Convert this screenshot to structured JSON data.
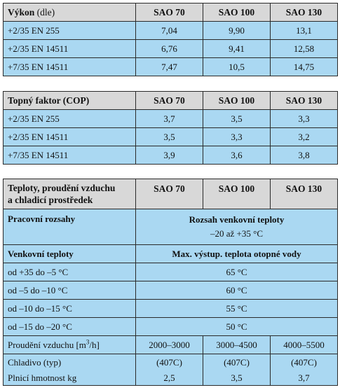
{
  "table1": {
    "header": [
      "Výkon",
      "(dle)",
      "SAO 70",
      "SAO 100",
      "SAO 130"
    ],
    "rows": [
      [
        "+2/35 EN 255",
        "7,04",
        "9,90",
        "13,1"
      ],
      [
        "+2/35 EN 14511",
        "6,76",
        "9,41",
        "12,58"
      ],
      [
        "+7/35 EN 14511",
        "7,47",
        "10,5",
        "14,75"
      ]
    ]
  },
  "table2": {
    "header": [
      "Topný faktor (COP)",
      "SAO 70",
      "SAO 100",
      "SAO 130"
    ],
    "rows": [
      [
        "+2/35 EN 255",
        "3,7",
        "3,5",
        "3,3"
      ],
      [
        "+2/35 EN 14511",
        "3,5",
        "3,3",
        "3,2"
      ],
      [
        "+7/35 EN 14511",
        "3,9",
        "3,6",
        "3,8"
      ]
    ]
  },
  "table3": {
    "header": [
      "Teploty, proudění vzduchu",
      "a chladicí prostředek",
      "SAO 70",
      "SAO 100",
      "SAO 130"
    ],
    "pracovni_label": "Pracovní rozsahy",
    "rozsah_title": "Rozsah venkovní teploty",
    "rozsah_value": "–20 až +35 °C",
    "venkovni_label": "Venkovní teploty",
    "max_title": "Max. výstup. teplota otopné vody",
    "temps": [
      [
        "od +35 do –5 °C",
        "65 °C"
      ],
      [
        "od –5 do –10 °C",
        "60 °C"
      ],
      [
        "od –10 do –15 °C",
        "55 °C"
      ],
      [
        "od –15 do –20 °C",
        "50 °C"
      ]
    ],
    "airflow_label": "Proudění vzduchu [m",
    "airflow_sup": "3",
    "airflow_unit": "/h]",
    "airflow": [
      "2000–3000",
      "3000–4500",
      "4000–5500"
    ],
    "chladivo_label": "Chladivo (typ)",
    "chladivo": [
      "(407C)",
      "(407C)",
      "(407C)"
    ],
    "plnici_label": "Plnicí hmotnost kg",
    "plnici": [
      "2,5",
      "3,5",
      "3,7"
    ]
  }
}
